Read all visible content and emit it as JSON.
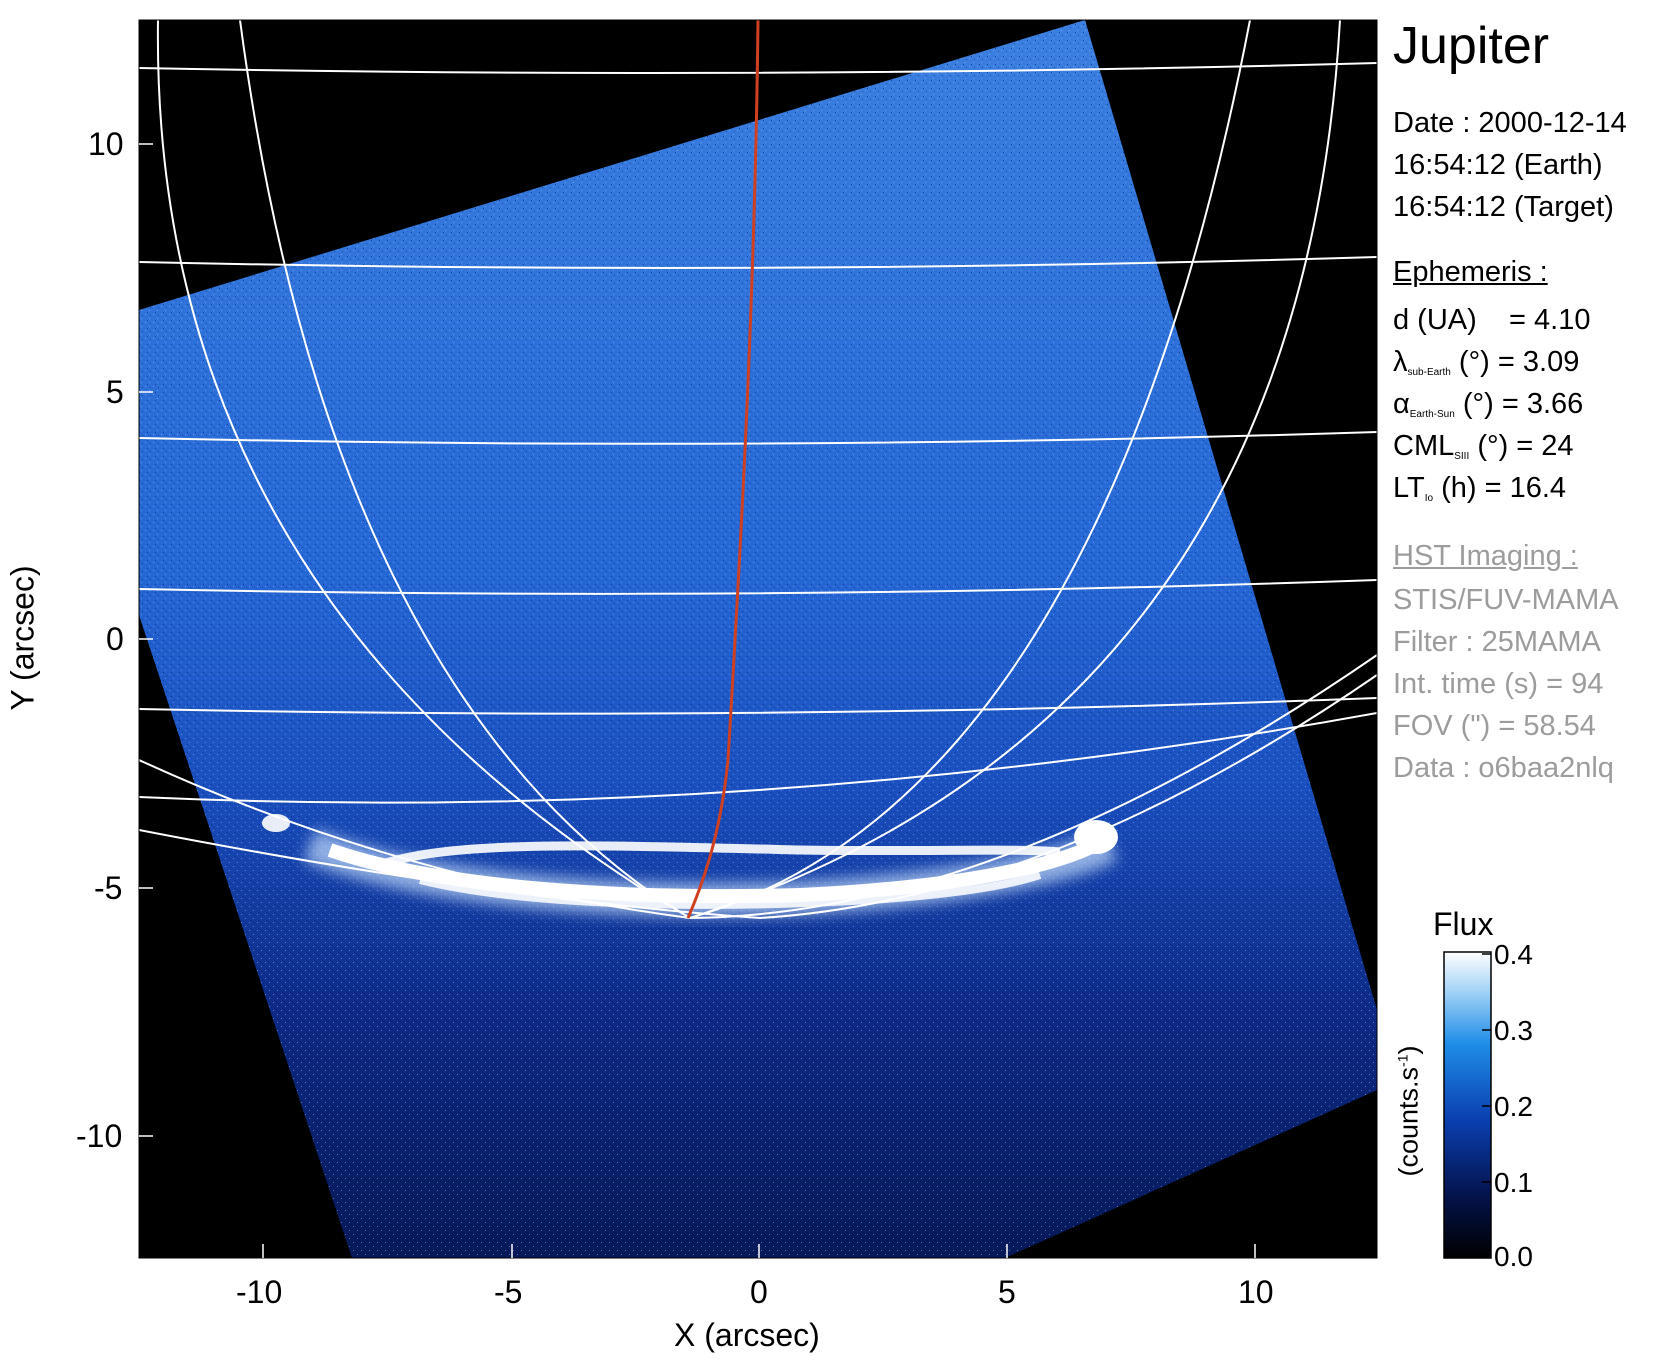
{
  "target": "Jupiter",
  "observation": {
    "date_line": "Date : 2000-12-14",
    "time_earth": "16:54:12 (Earth)",
    "time_target": "16:54:12 (Target)"
  },
  "ephemeris": {
    "heading": "Ephemeris :",
    "distance": {
      "label": "d (UA)",
      "value": "= 4.10"
    },
    "sub_earth_lat": {
      "symbol": "λ",
      "sub": "sub-Earth",
      "unit": "(°)",
      "value": "= 3.09"
    },
    "phase_angle": {
      "symbol": "α",
      "sub": "Earth-Sun",
      "unit": "(°)",
      "value": "= 3.66"
    },
    "cml": {
      "symbol": "CML",
      "sub": "SIII",
      "unit": "(°)",
      "value": "= 24"
    },
    "lt_io": {
      "symbol": "LT",
      "sub": "Io",
      "unit": "(h)",
      "value": "= 16.4"
    }
  },
  "hst": {
    "heading": "HST Imaging :",
    "instrument": "STIS/FUV-MAMA",
    "filter": "Filter : 25MAMA",
    "int_time": "Int. time (s) = 94",
    "fov": "FOV (\") = 58.54",
    "data": "Data : o6baa2nlq"
  },
  "axes": {
    "xlabel": "X (arcsec)",
    "ylabel": "Y (arcsec)",
    "xticks": [
      "-10",
      "-5",
      "0",
      "5",
      "10"
    ],
    "yticks": [
      "10",
      "5",
      "0",
      "-5",
      "-10"
    ],
    "xlim": [
      -12.5,
      12.5
    ],
    "ylim": [
      -12.5,
      12.5
    ]
  },
  "colorbar": {
    "title": "Flux",
    "label": "(counts.s",
    "label_exp": "-1",
    "label_close": ")",
    "ticks": [
      "0.4",
      "0.3",
      "0.2",
      "0.1",
      "0.0"
    ],
    "range": [
      0.0,
      0.4
    ]
  },
  "colors": {
    "image_background": "#000000",
    "sky_blue": "#1f5fd0",
    "auroral_oval": "#ffffff",
    "grid_lines": "#ffffff",
    "central_meridian": "#d04020",
    "hst_text": "#9c9c9c"
  }
}
